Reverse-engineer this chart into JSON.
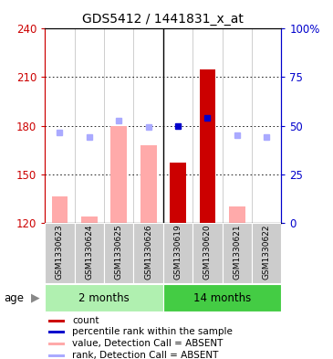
{
  "title": "GDS5412 / 1441831_x_at",
  "samples": [
    "GSM1330623",
    "GSM1330624",
    "GSM1330625",
    "GSM1330626",
    "GSM1330619",
    "GSM1330620",
    "GSM1330621",
    "GSM1330622"
  ],
  "bar_values_absent": [
    136,
    124,
    180,
    168,
    null,
    null,
    130,
    null
  ],
  "bar_values_present": [
    null,
    null,
    null,
    null,
    157,
    215,
    null,
    null
  ],
  "rank_dots_absent": [
    176,
    173,
    183,
    179,
    null,
    null,
    174,
    173
  ],
  "rank_dots_present_dark": [
    null,
    null,
    null,
    null,
    180,
    185,
    null,
    null
  ],
  "ylim": [
    120,
    240
  ],
  "y_ticks_left": [
    120,
    150,
    180,
    210,
    240
  ],
  "y_ticks_right_vals": [
    0,
    25,
    50,
    75,
    100
  ],
  "left_axis_color": "#cc0000",
  "right_axis_color": "#0000cc",
  "bar_absent_color": "#ffaaaa",
  "bar_present_color": "#cc0000",
  "dot_absent_color": "#aaaaff",
  "dot_present_color": "#0000cc",
  "sample_bg_color": "#cccccc",
  "group1_color": "#b0f0b0",
  "group2_color": "#44cc44",
  "legend_items": [
    {
      "color": "#cc0000",
      "label": "count"
    },
    {
      "color": "#0000cc",
      "label": "percentile rank within the sample"
    },
    {
      "color": "#ffaaaa",
      "label": "value, Detection Call = ABSENT"
    },
    {
      "color": "#aaaaff",
      "label": "rank, Detection Call = ABSENT"
    }
  ]
}
